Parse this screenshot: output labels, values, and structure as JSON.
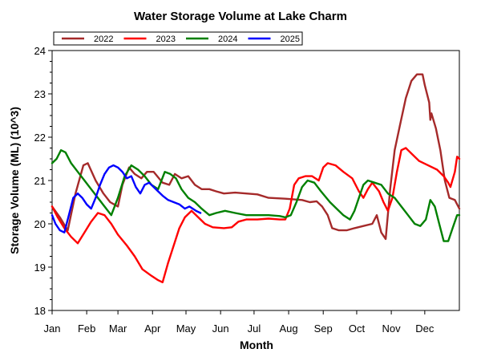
{
  "chart_data": {
    "type": "line",
    "title": "Water Storage Volume at Lake Charm",
    "xlabel": "Month",
    "ylabel": "Storage Volume (ML) (10^3)",
    "x_unit": "day of year",
    "xlim": [
      1,
      366
    ],
    "ylim": [
      18,
      24
    ],
    "y_ticks": [
      "18",
      "19",
      "20",
      "21",
      "22",
      "23",
      "24"
    ],
    "x_tick_labels": [
      {
        "label": "Jan",
        "day": 1
      },
      {
        "label": "Feb",
        "day": 32
      },
      {
        "label": "Mar",
        "day": 60
      },
      {
        "label": "Apr",
        "day": 91
      },
      {
        "label": "May",
        "day": 121
      },
      {
        "label": "Jun",
        "day": 152
      },
      {
        "label": "Jul",
        "day": 182
      },
      {
        "label": "Aug",
        "day": 213
      },
      {
        "label": "Sep",
        "day": 244
      },
      {
        "label": "Oct",
        "day": 274
      },
      {
        "label": "Nov",
        "day": 305
      },
      {
        "label": "Dec",
        "day": 335
      }
    ],
    "grid": false,
    "legend_position": "top-left",
    "series": [
      {
        "name": "2022",
        "color": "#a52a2a",
        "points": [
          [
            1,
            20.4
          ],
          [
            8,
            20.15
          ],
          [
            15,
            19.85
          ],
          [
            22,
            20.7
          ],
          [
            29,
            21.35
          ],
          [
            33,
            21.4
          ],
          [
            40,
            21.0
          ],
          [
            47,
            20.7
          ],
          [
            53,
            20.5
          ],
          [
            60,
            20.4
          ],
          [
            64,
            20.9
          ],
          [
            70,
            21.3
          ],
          [
            75,
            21.15
          ],
          [
            81,
            21.05
          ],
          [
            86,
            21.2
          ],
          [
            92,
            21.2
          ],
          [
            100,
            20.95
          ],
          [
            106,
            20.9
          ],
          [
            111,
            21.15
          ],
          [
            117,
            21.05
          ],
          [
            123,
            21.1
          ],
          [
            129,
            20.9
          ],
          [
            135,
            20.8
          ],
          [
            142,
            20.8
          ],
          [
            148,
            20.75
          ],
          [
            155,
            20.7
          ],
          [
            165,
            20.72
          ],
          [
            175,
            20.7
          ],
          [
            185,
            20.68
          ],
          [
            195,
            20.6
          ],
          [
            210,
            20.58
          ],
          [
            225,
            20.55
          ],
          [
            232,
            20.5
          ],
          [
            238,
            20.52
          ],
          [
            243,
            20.4
          ],
          [
            248,
            20.2
          ],
          [
            252,
            19.9
          ],
          [
            258,
            19.85
          ],
          [
            265,
            19.85
          ],
          [
            272,
            19.9
          ],
          [
            280,
            19.95
          ],
          [
            288,
            20.0
          ],
          [
            292,
            20.2
          ],
          [
            296,
            19.8
          ],
          [
            300,
            19.65
          ],
          [
            304,
            20.8
          ],
          [
            308,
            21.7
          ],
          [
            313,
            22.3
          ],
          [
            318,
            22.9
          ],
          [
            323,
            23.3
          ],
          [
            328,
            23.45
          ],
          [
            333,
            23.45
          ],
          [
            335,
            23.2
          ],
          [
            339,
            22.8
          ],
          [
            340,
            22.4
          ],
          [
            341,
            22.55
          ],
          [
            345,
            22.2
          ],
          [
            349,
            21.7
          ],
          [
            353,
            21.0
          ],
          [
            357,
            20.6
          ],
          [
            362,
            20.55
          ],
          [
            366,
            20.35
          ]
        ]
      },
      {
        "name": "2023",
        "color": "#ff0000",
        "points": [
          [
            1,
            20.4
          ],
          [
            6,
            20.15
          ],
          [
            12,
            19.9
          ],
          [
            18,
            19.7
          ],
          [
            24,
            19.55
          ],
          [
            30,
            19.8
          ],
          [
            36,
            20.05
          ],
          [
            42,
            20.25
          ],
          [
            48,
            20.2
          ],
          [
            54,
            20.0
          ],
          [
            60,
            19.75
          ],
          [
            68,
            19.5
          ],
          [
            75,
            19.25
          ],
          [
            82,
            18.95
          ],
          [
            90,
            18.8
          ],
          [
            96,
            18.7
          ],
          [
            100,
            18.65
          ],
          [
            105,
            19.1
          ],
          [
            110,
            19.5
          ],
          [
            115,
            19.9
          ],
          [
            120,
            20.15
          ],
          [
            126,
            20.3
          ],
          [
            132,
            20.15
          ],
          [
            138,
            20.0
          ],
          [
            145,
            19.92
          ],
          [
            155,
            19.9
          ],
          [
            162,
            19.92
          ],
          [
            168,
            20.05
          ],
          [
            175,
            20.1
          ],
          [
            185,
            20.1
          ],
          [
            195,
            20.12
          ],
          [
            205,
            20.1
          ],
          [
            210,
            20.1
          ],
          [
            214,
            20.35
          ],
          [
            218,
            20.9
          ],
          [
            222,
            21.05
          ],
          [
            228,
            21.1
          ],
          [
            234,
            21.1
          ],
          [
            240,
            21.0
          ],
          [
            244,
            21.3
          ],
          [
            248,
            21.4
          ],
          [
            255,
            21.35
          ],
          [
            262,
            21.2
          ],
          [
            270,
            21.05
          ],
          [
            276,
            20.75
          ],
          [
            280,
            20.6
          ],
          [
            284,
            20.8
          ],
          [
            288,
            20.95
          ],
          [
            294,
            20.75
          ],
          [
            298,
            20.5
          ],
          [
            302,
            20.3
          ],
          [
            306,
            20.6
          ],
          [
            310,
            21.2
          ],
          [
            314,
            21.7
          ],
          [
            318,
            21.75
          ],
          [
            324,
            21.6
          ],
          [
            330,
            21.45
          ],
          [
            338,
            21.35
          ],
          [
            346,
            21.25
          ],
          [
            352,
            21.1
          ],
          [
            356,
            20.95
          ],
          [
            358,
            20.85
          ],
          [
            362,
            21.2
          ],
          [
            364,
            21.55
          ],
          [
            366,
            21.5
          ]
        ]
      },
      {
        "name": "2024",
        "color": "#008000",
        "points": [
          [
            1,
            21.4
          ],
          [
            5,
            21.5
          ],
          [
            9,
            21.7
          ],
          [
            13,
            21.65
          ],
          [
            18,
            21.4
          ],
          [
            24,
            21.2
          ],
          [
            30,
            21.0
          ],
          [
            36,
            20.8
          ],
          [
            42,
            20.6
          ],
          [
            48,
            20.4
          ],
          [
            54,
            20.2
          ],
          [
            60,
            20.6
          ],
          [
            66,
            21.1
          ],
          [
            72,
            21.35
          ],
          [
            78,
            21.25
          ],
          [
            84,
            21.1
          ],
          [
            90,
            20.9
          ],
          [
            96,
            20.8
          ],
          [
            102,
            21.2
          ],
          [
            107,
            21.15
          ],
          [
            112,
            21.05
          ],
          [
            117,
            20.8
          ],
          [
            123,
            20.6
          ],
          [
            129,
            20.5
          ],
          [
            135,
            20.35
          ],
          [
            142,
            20.2
          ],
          [
            148,
            20.25
          ],
          [
            156,
            20.3
          ],
          [
            165,
            20.25
          ],
          [
            175,
            20.2
          ],
          [
            185,
            20.2
          ],
          [
            195,
            20.2
          ],
          [
            205,
            20.18
          ],
          [
            210,
            20.15
          ],
          [
            215,
            20.2
          ],
          [
            220,
            20.5
          ],
          [
            225,
            20.85
          ],
          [
            230,
            21.0
          ],
          [
            236,
            20.95
          ],
          [
            242,
            20.75
          ],
          [
            250,
            20.5
          ],
          [
            256,
            20.35
          ],
          [
            262,
            20.2
          ],
          [
            268,
            20.1
          ],
          [
            272,
            20.3
          ],
          [
            276,
            20.6
          ],
          [
            280,
            20.9
          ],
          [
            284,
            21.0
          ],
          [
            290,
            20.95
          ],
          [
            296,
            20.9
          ],
          [
            302,
            20.7
          ],
          [
            308,
            20.6
          ],
          [
            314,
            20.4
          ],
          [
            320,
            20.2
          ],
          [
            326,
            20.0
          ],
          [
            331,
            19.95
          ],
          [
            336,
            20.1
          ],
          [
            340,
            20.55
          ],
          [
            344,
            20.4
          ],
          [
            348,
            20.0
          ],
          [
            352,
            19.6
          ],
          [
            356,
            19.6
          ],
          [
            360,
            19.9
          ],
          [
            364,
            20.2
          ],
          [
            366,
            20.2
          ]
        ]
      },
      {
        "name": "2025",
        "color": "#0000ff",
        "points": [
          [
            1,
            20.2
          ],
          [
            4,
            20.0
          ],
          [
            8,
            19.85
          ],
          [
            12,
            19.8
          ],
          [
            16,
            20.2
          ],
          [
            20,
            20.6
          ],
          [
            24,
            20.7
          ],
          [
            28,
            20.6
          ],
          [
            32,
            20.45
          ],
          [
            36,
            20.35
          ],
          [
            40,
            20.6
          ],
          [
            44,
            20.9
          ],
          [
            48,
            21.15
          ],
          [
            52,
            21.3
          ],
          [
            56,
            21.35
          ],
          [
            60,
            21.3
          ],
          [
            64,
            21.2
          ],
          [
            68,
            21.05
          ],
          [
            72,
            21.1
          ],
          [
            76,
            20.85
          ],
          [
            80,
            20.7
          ],
          [
            84,
            20.9
          ],
          [
            88,
            20.95
          ],
          [
            92,
            20.85
          ],
          [
            96,
            20.75
          ],
          [
            100,
            20.65
          ],
          [
            105,
            20.55
          ],
          [
            110,
            20.5
          ],
          [
            115,
            20.45
          ],
          [
            120,
            20.35
          ],
          [
            124,
            20.4
          ],
          [
            130,
            20.3
          ],
          [
            134,
            20.25
          ]
        ]
      }
    ]
  }
}
